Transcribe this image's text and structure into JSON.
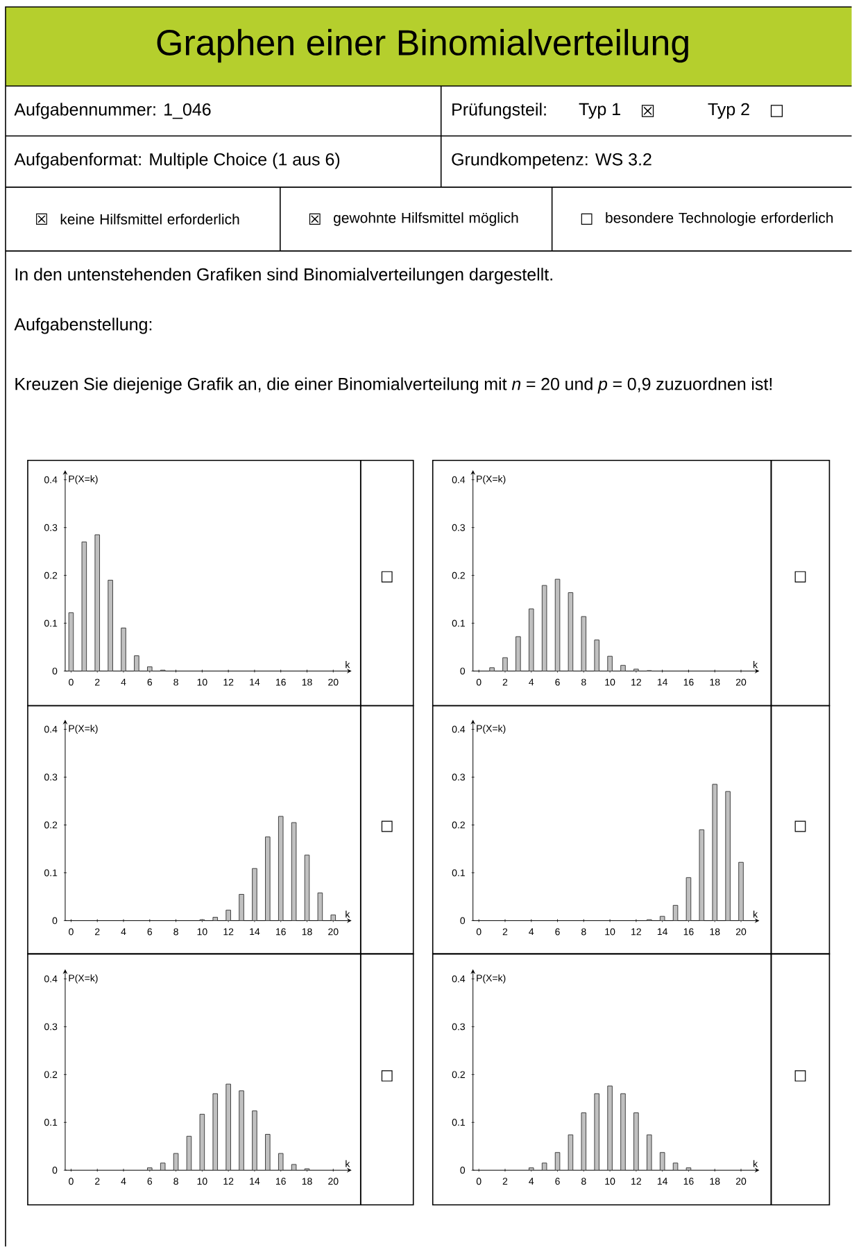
{
  "chart_data": [
    {
      "type": "other",
      "title": "Graphen einer Binomialverteilung",
      "annotations": [
        "Aufgabennummer: 1_046",
        "Prüfungsteil:",
        "Typ 1",
        "☒",
        "Typ 2",
        "☐",
        "Aufgabenformat: Multiple Choice (1 aus 6)",
        "Grundkompetenz: WS 3.2",
        "☒",
        "keine Hilfsmittel erforderlich",
        "☒",
        "gewohnte Hilfsmittel möglich",
        "☐",
        "besondere Technologie erforderlich",
        "In den untenstehenden Grafiken sind Binomialverteilungen dargestellt.",
        "Aufgabenstellung:",
        "Kreuzen Sie diejenige Grafik an, die einer Binomialverteilung mit *n* = 20 und *p* = 0,9 zuzuordnen ist!"
      ]
    },
    {
      "type": "bar",
      "xlabel": "k",
      "ylabel": "P(X=k)",
      "color": "#c0c0c0",
      "xlim": [
        -0.45,
        21.4
      ],
      "ylim": [
        0,
        0.42
      ],
      "xticks": [
        0,
        2,
        4,
        6,
        8,
        10,
        12,
        14,
        16,
        18,
        20
      ],
      "yticks": [
        0,
        0.1,
        0.2,
        0.3,
        0.4
      ],
      "annotations": [
        "☐"
      ],
      "x": [
        0,
        1,
        2,
        3,
        4,
        5,
        6,
        7
      ],
      "values": [
        0.122,
        0.27,
        0.285,
        0.19,
        0.09,
        0.032,
        0.009,
        0.002
      ]
    },
    {
      "type": "bar",
      "xlabel": "k",
      "ylabel": "P(X=k)",
      "color": "#c0c0c0",
      "xlim": [
        -0.45,
        21.4
      ],
      "ylim": [
        0,
        0.42
      ],
      "xticks": [
        0,
        2,
        4,
        6,
        8,
        10,
        12,
        14,
        16,
        18,
        20
      ],
      "yticks": [
        0,
        0.1,
        0.2,
        0.3,
        0.4
      ],
      "annotations": [
        "☐"
      ],
      "x": [
        1,
        2,
        3,
        4,
        5,
        6,
        7,
        8,
        9,
        10,
        11,
        12,
        13
      ],
      "values": [
        0.007,
        0.028,
        0.072,
        0.13,
        0.179,
        0.192,
        0.164,
        0.114,
        0.065,
        0.031,
        0.012,
        0.004,
        0.001
      ]
    },
    {
      "type": "bar",
      "xlabel": "k",
      "ylabel": "P(X=k)",
      "color": "#c0c0c0",
      "xlim": [
        -0.45,
        21.4
      ],
      "ylim": [
        0,
        0.42
      ],
      "xticks": [
        0,
        2,
        4,
        6,
        8,
        10,
        12,
        14,
        16,
        18,
        20
      ],
      "yticks": [
        0,
        0.1,
        0.2,
        0.3,
        0.4
      ],
      "annotations": [
        "☐"
      ],
      "x": [
        10,
        11,
        12,
        13,
        14,
        15,
        16,
        17,
        18,
        19,
        20
      ],
      "values": [
        0.002,
        0.007,
        0.022,
        0.055,
        0.109,
        0.175,
        0.218,
        0.205,
        0.137,
        0.058,
        0.012
      ]
    },
    {
      "type": "bar",
      "xlabel": "k",
      "ylabel": "P(X=k)",
      "color": "#c0c0c0",
      "xlim": [
        -0.45,
        21.4
      ],
      "ylim": [
        0,
        0.42
      ],
      "xticks": [
        0,
        2,
        4,
        6,
        8,
        10,
        12,
        14,
        16,
        18,
        20
      ],
      "yticks": [
        0,
        0.1,
        0.2,
        0.3,
        0.4
      ],
      "annotations": [
        "☐"
      ],
      "x": [
        13,
        14,
        15,
        16,
        17,
        18,
        19,
        20
      ],
      "values": [
        0.002,
        0.009,
        0.032,
        0.09,
        0.19,
        0.285,
        0.27,
        0.122
      ]
    },
    {
      "type": "bar",
      "xlabel": "k",
      "ylabel": "P(X=k)",
      "color": "#c0c0c0",
      "xlim": [
        -0.45,
        21.4
      ],
      "ylim": [
        0,
        0.42
      ],
      "xticks": [
        0,
        2,
        4,
        6,
        8,
        10,
        12,
        14,
        16,
        18,
        20
      ],
      "yticks": [
        0,
        0.1,
        0.2,
        0.3,
        0.4
      ],
      "annotations": [
        "☐"
      ],
      "x": [
        6,
        7,
        8,
        9,
        10,
        11,
        12,
        13,
        14,
        15,
        16,
        17,
        18
      ],
      "values": [
        0.005,
        0.015,
        0.035,
        0.071,
        0.117,
        0.16,
        0.18,
        0.166,
        0.124,
        0.075,
        0.035,
        0.012,
        0.003
      ]
    },
    {
      "type": "bar",
      "xlabel": "k",
      "ylabel": "P(X=k)",
      "color": "#c0c0c0",
      "xlim": [
        -0.45,
        21.4
      ],
      "ylim": [
        0,
        0.42
      ],
      "xticks": [
        0,
        2,
        4,
        6,
        8,
        10,
        12,
        14,
        16,
        18,
        20
      ],
      "yticks": [
        0,
        0.1,
        0.2,
        0.3,
        0.4
      ],
      "annotations": [
        "☐"
      ],
      "x": [
        4,
        5,
        6,
        7,
        8,
        9,
        10,
        11,
        12,
        13,
        14,
        15,
        16
      ],
      "values": [
        0.005,
        0.015,
        0.037,
        0.074,
        0.12,
        0.16,
        0.176,
        0.16,
        0.12,
        0.074,
        0.037,
        0.015,
        0.005
      ]
    }
  ]
}
